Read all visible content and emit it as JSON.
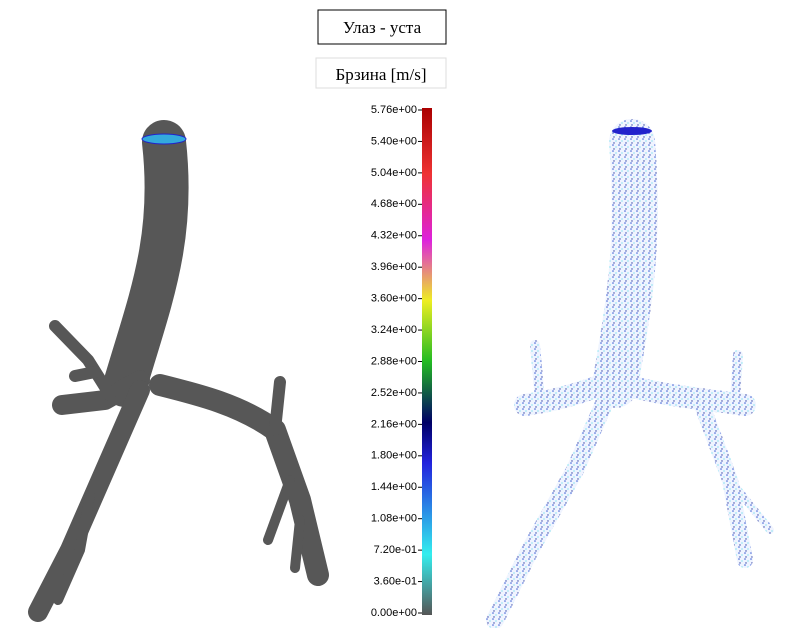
{
  "title": "Улаз - уста",
  "colorbar": {
    "label": "Брзина [m/s]",
    "lim": [
      0,
      5.76
    ],
    "ticks": [
      {
        "value": 5.76,
        "label": "5.76e+00"
      },
      {
        "value": 5.4,
        "label": "5.40e+00"
      },
      {
        "value": 5.04,
        "label": "5.04e+00"
      },
      {
        "value": 4.68,
        "label": "4.68e+00"
      },
      {
        "value": 4.32,
        "label": "4.32e+00"
      },
      {
        "value": 3.96,
        "label": "3.96e+00"
      },
      {
        "value": 3.6,
        "label": "3.60e+00"
      },
      {
        "value": 3.24,
        "label": "3.24e+00"
      },
      {
        "value": 2.88,
        "label": "2.88e+00"
      },
      {
        "value": 2.52,
        "label": "2.52e+00"
      },
      {
        "value": 2.16,
        "label": "2.16e+00"
      },
      {
        "value": 1.8,
        "label": "1.80e+00"
      },
      {
        "value": 1.44,
        "label": "1.44e+00"
      },
      {
        "value": 1.08,
        "label": "1.08e+00"
      },
      {
        "value": 0.72,
        "label": "7.20e-01"
      },
      {
        "value": 0.36,
        "label": "3.60e-01"
      },
      {
        "value": 0,
        "label": "0.00e+00"
      }
    ]
  }
}
